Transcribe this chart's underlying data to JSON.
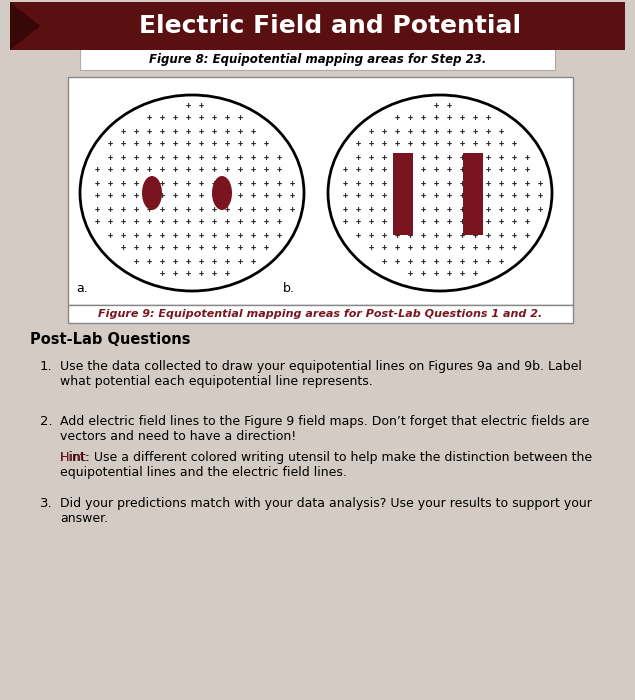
{
  "title": "Electric Field and Potential",
  "fig8_caption": "Figure 8: Equipotential mapping areas for Step 23.",
  "fig9_caption": "Figure 9: Equipotential mapping areas for Post-Lab Questions 1 and 2.",
  "bg_color": "#d4ccc4",
  "header_color": "#5a1010",
  "header_text_color": "#ffffff",
  "electrode_color": "#7a1520",
  "post_lab_title": "Post-Lab Questions",
  "q1": "Use the data collected to draw your equipotential lines on Figures 9a and 9b. Label\nwhat potential each equipotential line represents.",
  "q2_line1": "Add electric field lines to the Figure 9 field maps. Don’t forget that electric fields are",
  "q2_line2": "vectors and need to have a direction!",
  "q2_hint_rest": "Use a different colored writing utensil to help make the distinction between the\nequipotential lines and the electric field lines.",
  "q3": "Did your predictions match with your data analysis? Use your results to support your\nanswer."
}
